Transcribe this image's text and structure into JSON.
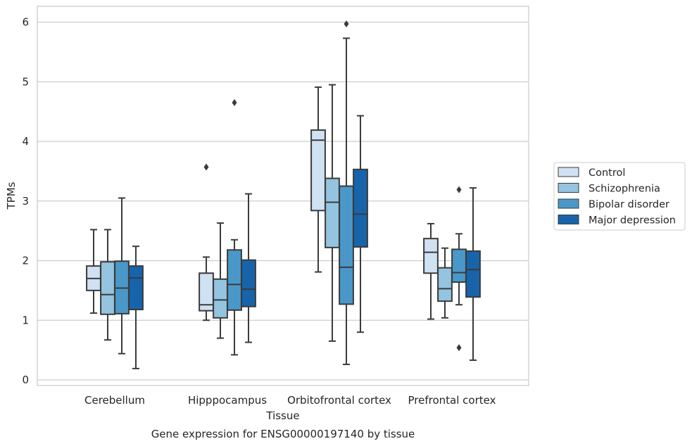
{
  "chart_data": {
    "type": "box",
    "title": "",
    "caption": "Gene expression for ENSG00000197140 by tissue",
    "xlabel": "Tissue",
    "ylabel": "TPMs",
    "ylim": [
      -0.1,
      6.27
    ],
    "yticks": [
      0,
      1,
      2,
      3,
      4,
      5,
      6
    ],
    "grid": "horizontal",
    "legend_position": "right",
    "categories": [
      "Cerebellum",
      "Hipppocampus",
      "Orbitofrontal cortex",
      "Prefrontal cortex"
    ],
    "series": [
      {
        "name": "Control",
        "color": "#d0e1f2",
        "boxes": [
          {
            "whislo": 1.12,
            "q1": 1.5,
            "med": 1.7,
            "q3": 1.91,
            "whishi": 2.52,
            "fliers": []
          },
          {
            "whislo": 1.0,
            "q1": 1.16,
            "med": 1.26,
            "q3": 1.79,
            "whishi": 2.06,
            "fliers": [
              3.57
            ]
          },
          {
            "whislo": 1.81,
            "q1": 2.84,
            "med": 4.02,
            "q3": 4.19,
            "whishi": 4.91,
            "fliers": []
          },
          {
            "whislo": 1.02,
            "q1": 1.79,
            "med": 2.14,
            "q3": 2.37,
            "whishi": 2.62,
            "fliers": []
          }
        ]
      },
      {
        "name": "Schizophrenia",
        "color": "#94c4df",
        "boxes": [
          {
            "whislo": 0.67,
            "q1": 1.1,
            "med": 1.43,
            "q3": 1.98,
            "whishi": 2.52,
            "fliers": []
          },
          {
            "whislo": 0.7,
            "q1": 1.04,
            "med": 1.34,
            "q3": 1.69,
            "whishi": 2.63,
            "fliers": []
          },
          {
            "whislo": 0.65,
            "q1": 2.22,
            "med": 2.98,
            "q3": 3.38,
            "whishi": 4.95,
            "fliers": []
          },
          {
            "whislo": 1.04,
            "q1": 1.32,
            "med": 1.53,
            "q3": 1.88,
            "whishi": 2.21,
            "fliers": []
          }
        ]
      },
      {
        "name": "Bipolar disorder",
        "color": "#4a98c9",
        "boxes": [
          {
            "whislo": 0.44,
            "q1": 1.11,
            "med": 1.54,
            "q3": 1.99,
            "whishi": 3.05,
            "fliers": []
          },
          {
            "whislo": 0.42,
            "q1": 1.17,
            "med": 1.6,
            "q3": 2.18,
            "whishi": 2.35,
            "fliers": [
              4.65
            ]
          },
          {
            "whislo": 0.26,
            "q1": 1.27,
            "med": 1.89,
            "q3": 3.25,
            "whishi": 5.73,
            "fliers": [
              5.97
            ]
          },
          {
            "whislo": 1.26,
            "q1": 1.64,
            "med": 1.8,
            "q3": 2.19,
            "whishi": 2.45,
            "fliers": [
              3.19,
              0.54
            ]
          }
        ]
      },
      {
        "name": "Major depression",
        "color": "#1764ab",
        "boxes": [
          {
            "whislo": 0.19,
            "q1": 1.18,
            "med": 1.71,
            "q3": 1.91,
            "whishi": 2.24,
            "fliers": []
          },
          {
            "whislo": 0.63,
            "q1": 1.23,
            "med": 1.52,
            "q3": 2.01,
            "whishi": 3.12,
            "fliers": []
          },
          {
            "whislo": 0.8,
            "q1": 2.23,
            "med": 2.78,
            "q3": 3.53,
            "whishi": 4.43,
            "fliers": []
          },
          {
            "whislo": 0.33,
            "q1": 1.39,
            "med": 1.85,
            "q3": 2.16,
            "whishi": 3.22,
            "fliers": []
          }
        ]
      }
    ]
  }
}
